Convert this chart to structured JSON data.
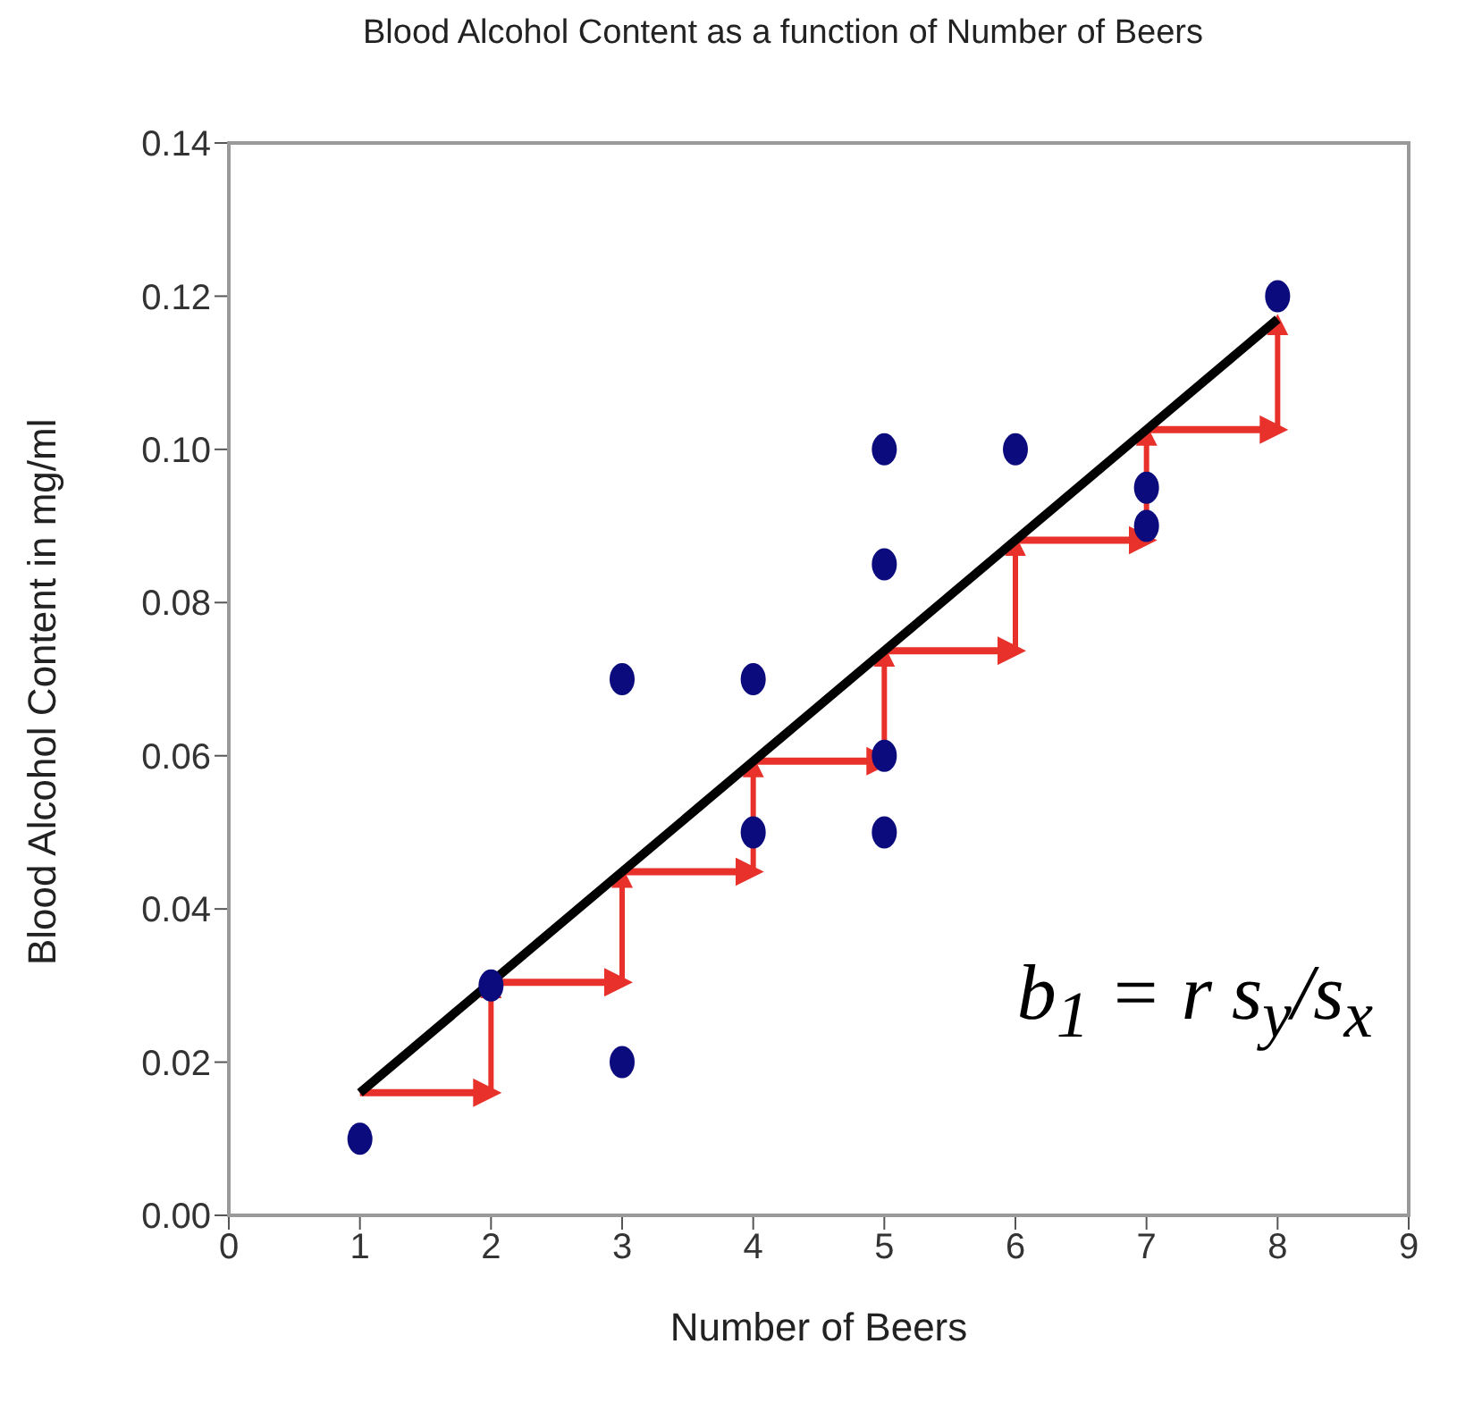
{
  "chart_data": {
    "type": "scatter",
    "title": "Blood Alcohol Content as a function of Number of Beers",
    "xlabel": "Number of Beers",
    "ylabel": "Blood Alcohol Content in mg/ml",
    "series": [
      {
        "color": "#0b0b7d",
        "marker": "circle",
        "x": [
          1,
          2,
          3,
          3,
          4,
          4,
          5,
          5,
          5,
          5,
          6,
          7,
          7,
          8
        ],
        "values": [
          0.01,
          0.03,
          0.07,
          0.02,
          0.07,
          0.05,
          0.1,
          0.085,
          0.06,
          0.05,
          0.1,
          0.095,
          0.09,
          0.12
        ]
      },
      {
        "type": "line",
        "marker": "none",
        "color": "#000000",
        "x": [
          1,
          8
        ],
        "values": [
          0.016,
          0.117
        ]
      }
    ],
    "xlim": [
      0,
      9
    ],
    "xticks": [
      0,
      1,
      2,
      3,
      4,
      5,
      6,
      7,
      8,
      9
    ],
    "ylim": [
      0,
      0.14
    ],
    "yticks": [
      {
        "value": 0,
        "label": "0.00"
      },
      {
        "value": 0.02,
        "label": "0.02"
      },
      {
        "value": 0.04,
        "label": "0.04"
      },
      {
        "value": 0.06,
        "label": "0.06"
      },
      {
        "value": 0.08,
        "label": "0.08"
      },
      {
        "value": 0.1,
        "label": "0.10"
      },
      {
        "value": 0.12,
        "label": "0.12"
      },
      {
        "value": 0.14,
        "label": "0.14"
      }
    ],
    "annotations": [
      "b$_{1}$ = r s$_{y}$/s$_{x}$"
    ],
    "grid": false,
    "line_style": "solid"
  }
}
